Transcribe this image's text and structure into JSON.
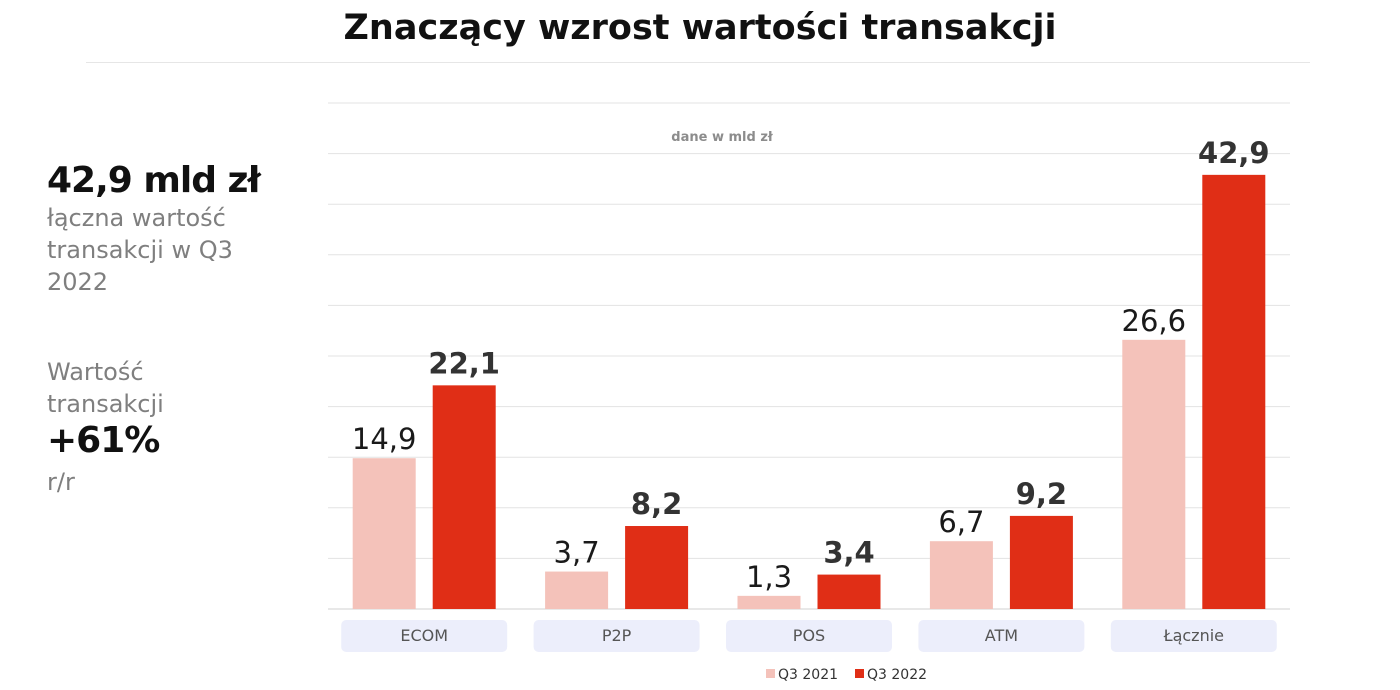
{
  "title": "Znaczący wzrost wartości transakcji",
  "side_panel": {
    "total_value": "42,9 mld zł",
    "total_description": "łączna wartość transakcji w Q3 2022",
    "growth_label": "Wartość transakcji",
    "growth_value": "+61%",
    "growth_unit": "r/r"
  },
  "colors": {
    "q3_2021": "#f4c2ba",
    "q3_2022": "#e02e16",
    "category_box": "#eceefb",
    "grid": "#e3e3e3"
  },
  "chart_data": {
    "type": "bar",
    "title": "Znaczący wzrost wartości transakcji",
    "annotation": "dane w mld zł",
    "categories": [
      "ECOM",
      "P2P",
      "POS",
      "ATM",
      "Łącznie"
    ],
    "series": [
      {
        "name": "Q3 2021",
        "values": [
          14.9,
          3.7,
          1.3,
          6.7,
          26.6
        ],
        "labels": [
          "14,9",
          "3,7",
          "1,3",
          "6,7",
          "26,6"
        ]
      },
      {
        "name": "Q3 2022",
        "values": [
          22.1,
          8.2,
          3.4,
          9.2,
          42.9
        ],
        "labels": [
          "22,1",
          "8,2",
          "3,4",
          "9,2",
          "42,9"
        ]
      }
    ],
    "ylim": [
      0,
      50
    ],
    "grid": true,
    "legend": "bottom-center"
  }
}
